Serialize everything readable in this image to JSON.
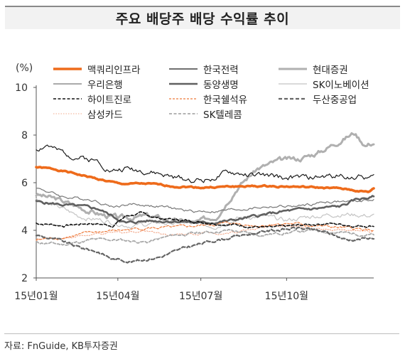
{
  "title": "주요 배당주 배당 수익률 추이",
  "source": "자료: FnGuide, KB투자증권",
  "chart_data": {
    "type": "line",
    "unit": "(%)",
    "ylim": [
      2,
      10
    ],
    "yticks": [
      2,
      4,
      6,
      8,
      10
    ],
    "xticks": [
      {
        "label": "15년01월",
        "t": 0
      },
      {
        "label": "15년04월",
        "t": 59
      },
      {
        "label": "15년07월",
        "t": 119
      },
      {
        "label": "15년10월",
        "t": 181
      }
    ],
    "x_count": 245,
    "grid": false,
    "legend_position": "top",
    "series": [
      {
        "name": "맥쿼리인프라",
        "color": "#ee6b1b",
        "width": 3.6,
        "dash": "",
        "knots": [
          [
            0,
            6.65
          ],
          [
            15,
            6.55
          ],
          [
            30,
            6.35
          ],
          [
            45,
            6.15
          ],
          [
            60,
            5.95
          ],
          [
            80,
            5.95
          ],
          [
            100,
            5.85
          ],
          [
            120,
            5.8
          ],
          [
            150,
            5.85
          ],
          [
            180,
            5.85
          ],
          [
            200,
            5.8
          ],
          [
            220,
            5.75
          ],
          [
            240,
            5.6
          ],
          [
            244,
            5.75
          ]
        ],
        "noise": 0.05,
        "seed": 1
      },
      {
        "name": "한국전력",
        "color": "#1a1a1a",
        "width": 1.2,
        "dash": "",
        "knots": [
          [
            0,
            7.4
          ],
          [
            8,
            7.6
          ],
          [
            15,
            7.3
          ],
          [
            30,
            7.1
          ],
          [
            45,
            6.9
          ],
          [
            55,
            6.5
          ],
          [
            65,
            6.6
          ],
          [
            80,
            6.5
          ],
          [
            100,
            6.2
          ],
          [
            120,
            6.1
          ],
          [
            140,
            6.4
          ],
          [
            160,
            6.3
          ],
          [
            180,
            6.2
          ],
          [
            200,
            6.2
          ],
          [
            220,
            6.3
          ],
          [
            244,
            6.2
          ]
        ],
        "noise": 0.18,
        "seed": 2
      },
      {
        "name": "현대증권",
        "color": "#b0b0b0",
        "width": 3.0,
        "dash": "",
        "knots": [
          [
            0,
            5.5
          ],
          [
            15,
            5.3
          ],
          [
            30,
            5.0
          ],
          [
            45,
            4.7
          ],
          [
            60,
            4.5
          ],
          [
            80,
            4.6
          ],
          [
            100,
            4.4
          ],
          [
            115,
            4.3
          ],
          [
            130,
            4.6
          ],
          [
            145,
            5.8
          ],
          [
            160,
            6.6
          ],
          [
            175,
            6.9
          ],
          [
            190,
            7.0
          ],
          [
            205,
            7.3
          ],
          [
            220,
            7.8
          ],
          [
            230,
            8.1
          ],
          [
            238,
            7.6
          ],
          [
            244,
            7.7
          ]
        ],
        "noise": 0.16,
        "seed": 3
      },
      {
        "name": "우리은행",
        "color": "#777777",
        "width": 1.2,
        "dash": "",
        "knots": [
          [
            0,
            5.8
          ],
          [
            10,
            5.6
          ],
          [
            20,
            5.4
          ],
          [
            40,
            5.3
          ],
          [
            55,
            5.0
          ],
          [
            70,
            5.1
          ],
          [
            90,
            5.0
          ],
          [
            110,
            4.8
          ],
          [
            130,
            4.8
          ],
          [
            150,
            4.9
          ],
          [
            170,
            5.0
          ],
          [
            190,
            5.0
          ],
          [
            210,
            5.2
          ],
          [
            230,
            5.2
          ],
          [
            244,
            5.3
          ]
        ],
        "noise": 0.09,
        "seed": 4
      },
      {
        "name": "동양생명",
        "color": "#606060",
        "width": 2.6,
        "dash": "",
        "knots": [
          [
            0,
            5.2
          ],
          [
            15,
            5.1
          ],
          [
            30,
            5.0
          ],
          [
            45,
            4.9
          ],
          [
            55,
            4.6
          ],
          [
            65,
            4.3
          ],
          [
            80,
            4.4
          ],
          [
            100,
            4.4
          ],
          [
            120,
            4.3
          ],
          [
            140,
            4.4
          ],
          [
            160,
            4.6
          ],
          [
            180,
            4.8
          ],
          [
            200,
            4.9
          ],
          [
            220,
            5.0
          ],
          [
            232,
            5.3
          ],
          [
            244,
            5.4
          ]
        ],
        "noise": 0.09,
        "seed": 5
      },
      {
        "name": "SK이노베이션",
        "color": "#c4c4c4",
        "width": 1.2,
        "dash": "",
        "knots": [
          [
            0,
            5.3
          ],
          [
            15,
            5.0
          ],
          [
            30,
            4.6
          ],
          [
            50,
            4.4
          ],
          [
            70,
            4.2
          ],
          [
            90,
            4.3
          ],
          [
            110,
            4.3
          ],
          [
            130,
            4.2
          ],
          [
            145,
            4.5
          ],
          [
            160,
            4.6
          ],
          [
            180,
            4.4
          ],
          [
            200,
            4.6
          ],
          [
            220,
            4.7
          ],
          [
            244,
            4.6
          ]
        ],
        "noise": 0.15,
        "seed": 6
      },
      {
        "name": "하이트진로",
        "color": "#111111",
        "width": 1.6,
        "dash": "4,2.5",
        "knots": [
          [
            0,
            4.3
          ],
          [
            20,
            4.2
          ],
          [
            40,
            4.3
          ],
          [
            55,
            4.2
          ],
          [
            65,
            4.6
          ],
          [
            75,
            4.7
          ],
          [
            90,
            4.5
          ],
          [
            110,
            4.4
          ],
          [
            130,
            4.3
          ],
          [
            150,
            4.2
          ],
          [
            170,
            4.1
          ],
          [
            190,
            4.2
          ],
          [
            210,
            4.3
          ],
          [
            230,
            4.2
          ],
          [
            244,
            4.2
          ]
        ],
        "noise": 0.08,
        "seed": 7
      },
      {
        "name": "한국쉘석유",
        "color": "#ee7a3a",
        "width": 1.2,
        "dash": "3,2",
        "knots": [
          [
            0,
            3.6
          ],
          [
            20,
            3.7
          ],
          [
            40,
            3.9
          ],
          [
            60,
            4.0
          ],
          [
            80,
            4.1
          ],
          [
            100,
            4.1
          ],
          [
            120,
            4.2
          ],
          [
            140,
            4.3
          ],
          [
            160,
            4.2
          ],
          [
            180,
            4.3
          ],
          [
            200,
            4.2
          ],
          [
            220,
            4.1
          ],
          [
            244,
            4.0
          ]
        ],
        "noise": 0.09,
        "seed": 8
      },
      {
        "name": "두산중공업",
        "color": "#666666",
        "width": 2.2,
        "dash": "5,3",
        "knots": [
          [
            0,
            3.8
          ],
          [
            15,
            3.6
          ],
          [
            30,
            3.3
          ],
          [
            45,
            3.1
          ],
          [
            55,
            2.8
          ],
          [
            70,
            2.7
          ],
          [
            90,
            2.9
          ],
          [
            110,
            3.3
          ],
          [
            130,
            3.6
          ],
          [
            150,
            3.8
          ],
          [
            170,
            4.0
          ],
          [
            190,
            4.1
          ],
          [
            210,
            3.9
          ],
          [
            225,
            3.6
          ],
          [
            244,
            3.7
          ]
        ],
        "noise": 0.09,
        "seed": 9
      },
      {
        "name": "삼성카드",
        "color": "#f2a88a",
        "width": 1.1,
        "dash": "1.5,2",
        "knots": [
          [
            0,
            3.6
          ],
          [
            20,
            3.7
          ],
          [
            40,
            3.8
          ],
          [
            60,
            3.9
          ],
          [
            80,
            4.0
          ],
          [
            100,
            3.8
          ],
          [
            120,
            3.9
          ],
          [
            140,
            3.9
          ],
          [
            160,
            4.1
          ],
          [
            180,
            4.2
          ],
          [
            200,
            4.1
          ],
          [
            220,
            4.0
          ],
          [
            244,
            3.9
          ]
        ],
        "noise": 0.08,
        "seed": 10
      },
      {
        "name": "SK텔레콤",
        "color": "#a9a9a9",
        "width": 1.8,
        "dash": "4,2.5",
        "knots": [
          [
            0,
            3.5
          ],
          [
            20,
            3.4
          ],
          [
            40,
            3.6
          ],
          [
            60,
            3.6
          ],
          [
            80,
            3.5
          ],
          [
            100,
            3.8
          ],
          [
            120,
            3.9
          ],
          [
            140,
            4.0
          ],
          [
            160,
            3.8
          ],
          [
            180,
            3.9
          ],
          [
            200,
            4.0
          ],
          [
            220,
            3.9
          ],
          [
            244,
            3.8
          ]
        ],
        "noise": 0.09,
        "seed": 11
      }
    ]
  }
}
